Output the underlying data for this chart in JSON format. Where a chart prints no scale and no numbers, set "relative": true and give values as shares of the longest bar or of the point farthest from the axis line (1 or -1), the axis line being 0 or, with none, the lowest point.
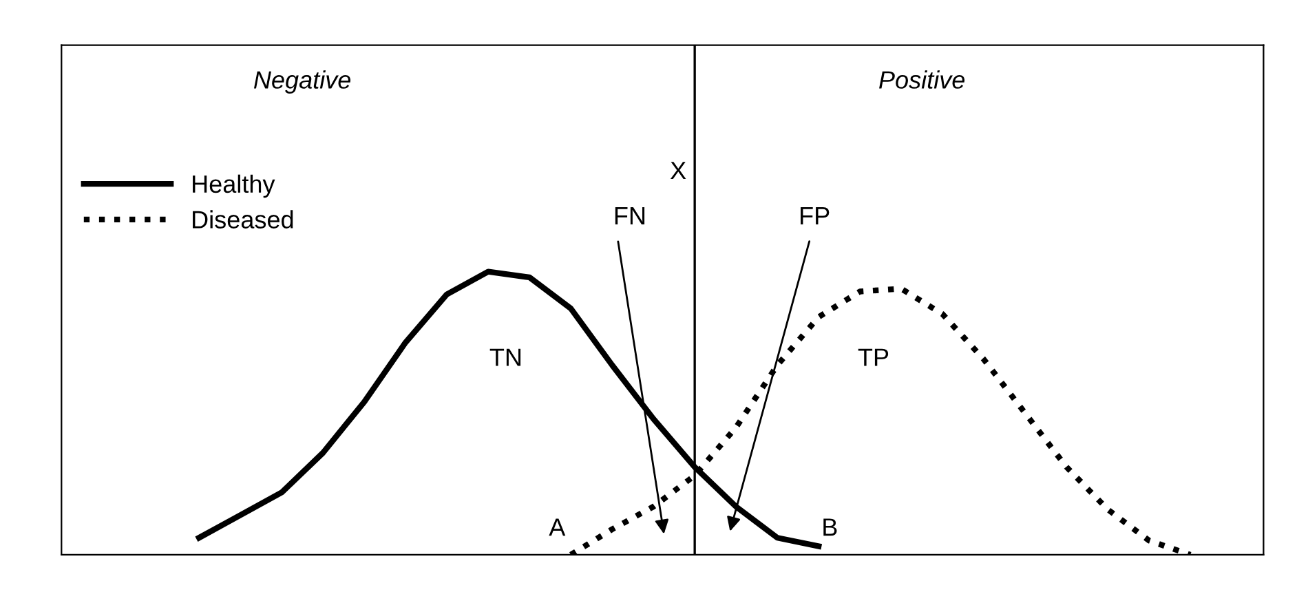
{
  "chart_data": {
    "type": "line",
    "relative": true,
    "categories": [
      null,
      null,
      null,
      null,
      null,
      null,
      null,
      null,
      null,
      null,
      null,
      null,
      null,
      null,
      null,
      null,
      null,
      null,
      null,
      null,
      null,
      null,
      null,
      null,
      null,
      null
    ],
    "series": [
      {
        "name": "Healthy",
        "color": "#000000",
        "line_style": "solid",
        "values": [
          0.06,
          0.14,
          0.22,
          0.36,
          0.54,
          0.75,
          0.92,
          1.0,
          0.98,
          0.87,
          0.67,
          0.48,
          0.31,
          0.17,
          0.06,
          0.03,
          null,
          null,
          null,
          null,
          null,
          null,
          null,
          null,
          null,
          null
        ]
      },
      {
        "name": "Diseased",
        "color": "#000000",
        "line_style": "dotted",
        "values": [
          null,
          null,
          null,
          null,
          null,
          null,
          null,
          null,
          null,
          0.0,
          0.09,
          0.17,
          0.28,
          0.45,
          0.67,
          0.84,
          0.93,
          0.94,
          0.85,
          0.69,
          0.5,
          0.31,
          0.16,
          0.05,
          0.0,
          null
        ]
      }
    ],
    "annotations": [
      "Negative",
      "Positive",
      "FN",
      "FP",
      "TN",
      "TP",
      "A",
      "B",
      "X"
    ],
    "legend": "top left",
    "marker": "none"
  }
}
